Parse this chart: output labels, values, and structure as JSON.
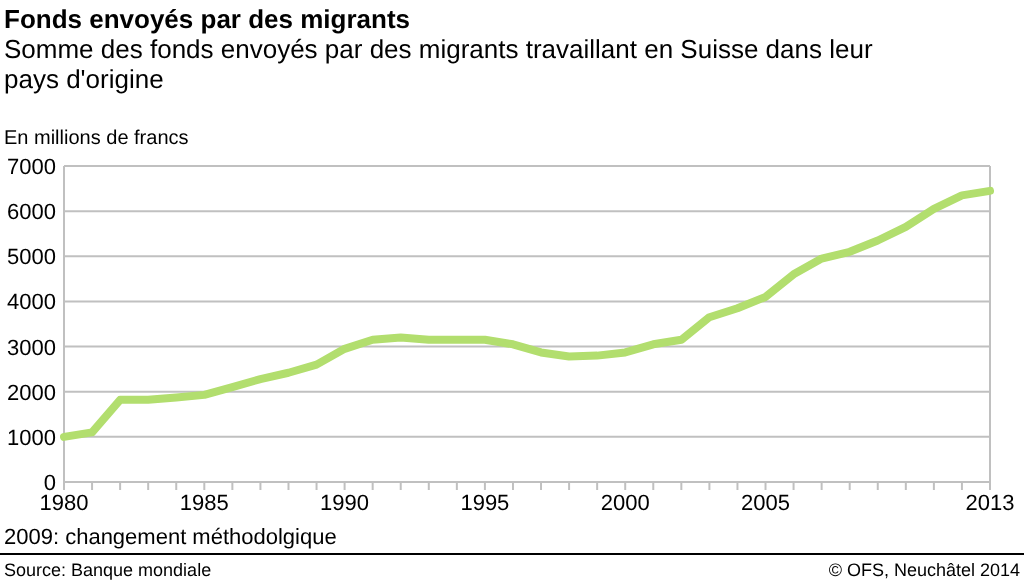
{
  "chart_data": {
    "type": "line",
    "title": "Fonds envoyés par des migrants",
    "subtitle": "Somme des fonds envoyés par des migrants travaillant en Suisse dans leur pays d'origine",
    "ylabel": "En millions de francs",
    "x": [
      1980,
      1981,
      1982,
      1983,
      1984,
      1985,
      1986,
      1987,
      1988,
      1989,
      1990,
      1991,
      1992,
      1993,
      1994,
      1995,
      1996,
      1997,
      1998,
      1999,
      2000,
      2001,
      2002,
      2003,
      2004,
      2005,
      2006,
      2007,
      2008,
      2009,
      2010,
      2011,
      2012,
      2013
    ],
    "series": [
      {
        "color": "#b2de6e",
        "values": [
          1000,
          1100,
          1820,
          1820,
          1870,
          1930,
          2100,
          2280,
          2420,
          2600,
          2950,
          3150,
          3200,
          3150,
          3150,
          3150,
          3050,
          2870,
          2780,
          2800,
          2870,
          3050,
          3150,
          3650,
          3850,
          4100,
          4600,
          4950,
          5100,
          5350,
          5650,
          6050,
          6350,
          6450
        ]
      }
    ],
    "xlim": [
      1980,
      2013
    ],
    "xticks": [
      1980,
      {
        "value": 1981,
        "label": null
      },
      {
        "value": 1982,
        "label": null
      },
      {
        "value": 1983,
        "label": null
      },
      {
        "value": 1984,
        "label": null
      },
      1985,
      {
        "value": 1986,
        "label": null
      },
      {
        "value": 1987,
        "label": null
      },
      {
        "value": 1988,
        "label": null
      },
      {
        "value": 1989,
        "label": null
      },
      1990,
      {
        "value": 1991,
        "label": null
      },
      {
        "value": 1992,
        "label": null
      },
      {
        "value": 1993,
        "label": null
      },
      {
        "value": 1994,
        "label": null
      },
      1995,
      {
        "value": 1996,
        "label": null
      },
      {
        "value": 1997,
        "label": null
      },
      {
        "value": 1998,
        "label": null
      },
      {
        "value": 1999,
        "label": null
      },
      2000,
      {
        "value": 2001,
        "label": null
      },
      {
        "value": 2002,
        "label": null
      },
      {
        "value": 2003,
        "label": null
      },
      {
        "value": 2004,
        "label": null
      },
      2005,
      {
        "value": 2006,
        "label": null
      },
      {
        "value": 2007,
        "label": null
      },
      {
        "value": 2008,
        "label": null
      },
      {
        "value": 2009,
        "label": null
      },
      {
        "value": 2010,
        "label": null
      },
      {
        "value": 2011,
        "label": null
      },
      {
        "value": 2012,
        "label": null
      },
      2013
    ],
    "ylim": [
      0,
      7000
    ],
    "yticks": [
      0,
      1000,
      2000,
      3000,
      4000,
      5000,
      6000,
      7000
    ],
    "grid": "y",
    "marker": "none",
    "line_style": "solid",
    "annotations": [
      "2009: changement méthodolgique",
      "Source: Banque mondiale",
      "© OFS, Neuchâtel 2014"
    ]
  }
}
